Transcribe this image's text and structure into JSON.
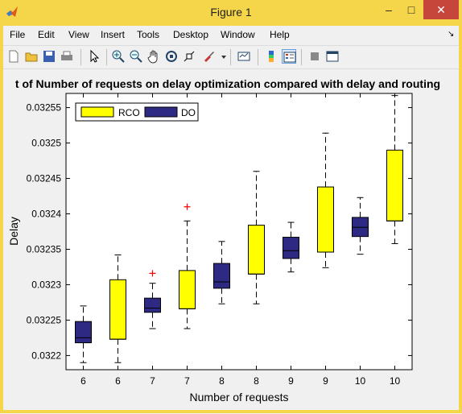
{
  "window": {
    "title": "Figure 1",
    "minimize_label": "–",
    "maximize_label": "□",
    "close_label": "✕",
    "accent": "#f5d54a"
  },
  "menu": {
    "items": [
      "File",
      "Edit",
      "View",
      "Insert",
      "Tools",
      "Desktop",
      "Window",
      "Help"
    ],
    "dock_label": "↘"
  },
  "toolbar": {
    "icons": [
      "new-figure-icon",
      "open-file-icon",
      "save-icon",
      "print-icon",
      "edit-plot-icon",
      "zoom-in-icon",
      "zoom-out-icon",
      "pan-icon",
      "rotate-3d-icon",
      "data-cursor-icon",
      "brush-icon",
      "brush-dropdown-icon",
      "link-plot-icon",
      "insert-colorbar-icon",
      "insert-legend-icon",
      "hide-plot-tools-icon",
      "show-plot-tools-icon"
    ]
  },
  "chart_data": {
    "type": "box",
    "title": "t of Number of requests on delay optimization compared with delay and routing",
    "xlabel": "Number of requests",
    "ylabel": "Delay",
    "ylim": [
      0.03218,
      0.03257
    ],
    "yticks": [
      0.0322,
      0.03225,
      0.0323,
      0.03235,
      0.0324,
      0.03245,
      0.0325,
      0.03255
    ],
    "ytick_labels": [
      "0.0322",
      "0.03225",
      "0.0323",
      "0.03235",
      "0.0324",
      "0.03245",
      "0.0325",
      "0.03255"
    ],
    "categories": [
      "6",
      "6",
      "7",
      "7",
      "8",
      "8",
      "9",
      "9",
      "10",
      "10"
    ],
    "series_colors": {
      "RCO": "#ffff00",
      "DO": "#2e2a84"
    },
    "outlier_color": "#ff0000",
    "legend": {
      "position": "top-left",
      "entries": [
        {
          "label": "RCO",
          "color": "#ffff00"
        },
        {
          "label": "DO",
          "color": "#2e2a84"
        }
      ]
    },
    "boxes": [
      {
        "category": "6",
        "series": "DO",
        "whisker_low": 0.03219,
        "q1": 0.032218,
        "median": 0.032225,
        "q3": 0.032248,
        "whisker_high": 0.03227,
        "outliers": []
      },
      {
        "category": "6",
        "series": "RCO",
        "whisker_low": 0.03219,
        "q1": 0.032223,
        "median": 0.032223,
        "q3": 0.032307,
        "whisker_high": 0.032342,
        "outliers": []
      },
      {
        "category": "7",
        "series": "DO",
        "whisker_low": 0.032238,
        "q1": 0.032261,
        "median": 0.032267,
        "q3": 0.032281,
        "whisker_high": 0.032302,
        "outliers": [
          0.032316
        ]
      },
      {
        "category": "7",
        "series": "RCO",
        "whisker_low": 0.032238,
        "q1": 0.032266,
        "median": 0.032266,
        "q3": 0.03232,
        "whisker_high": 0.03239,
        "outliers": [
          0.03241
        ]
      },
      {
        "category": "8",
        "series": "DO",
        "whisker_low": 0.032273,
        "q1": 0.032295,
        "median": 0.032304,
        "q3": 0.03233,
        "whisker_high": 0.032361,
        "outliers": []
      },
      {
        "category": "8",
        "series": "RCO",
        "whisker_low": 0.032273,
        "q1": 0.032315,
        "median": 0.032315,
        "q3": 0.032384,
        "whisker_high": 0.03246,
        "outliers": []
      },
      {
        "category": "9",
        "series": "DO",
        "whisker_low": 0.032318,
        "q1": 0.032337,
        "median": 0.032348,
        "q3": 0.032367,
        "whisker_high": 0.032388,
        "outliers": []
      },
      {
        "category": "9",
        "series": "RCO",
        "whisker_low": 0.032324,
        "q1": 0.032346,
        "median": 0.032346,
        "q3": 0.032438,
        "whisker_high": 0.032514,
        "outliers": []
      },
      {
        "category": "10",
        "series": "DO",
        "whisker_low": 0.032343,
        "q1": 0.032368,
        "median": 0.032381,
        "q3": 0.032395,
        "whisker_high": 0.032423,
        "outliers": []
      },
      {
        "category": "10",
        "series": "RCO",
        "whisker_low": 0.032358,
        "q1": 0.03239,
        "median": 0.03239,
        "q3": 0.03249,
        "whisker_high": 0.032567,
        "outliers": []
      }
    ]
  }
}
